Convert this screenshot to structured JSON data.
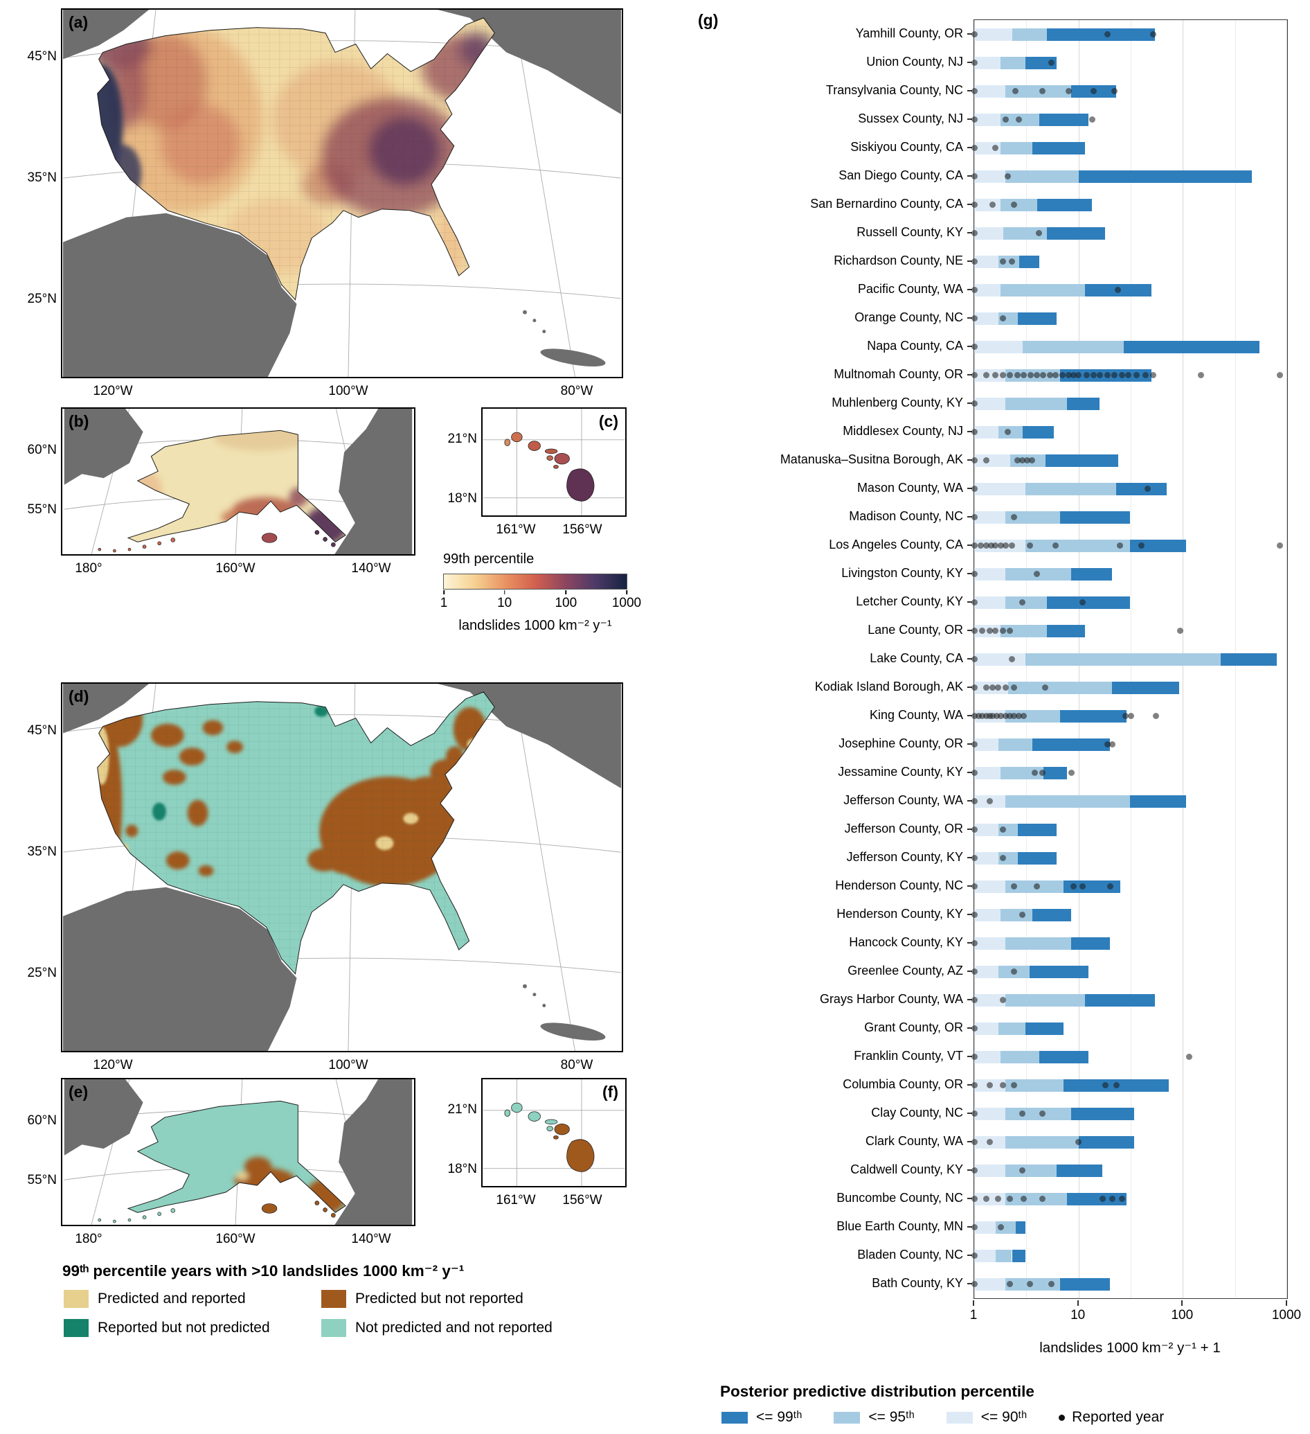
{
  "figure": {
    "panels": {
      "a": {
        "label": "(a)",
        "lat": [
          "45°N",
          "35°N",
          "25°N"
        ],
        "lon": [
          "120°W",
          "100°W",
          "80°W"
        ]
      },
      "b": {
        "label": "(b)",
        "lat": [
          "60°N",
          "55°N"
        ],
        "lon": [
          "180°",
          "160°W",
          "140°W"
        ]
      },
      "c": {
        "label": "(c)",
        "lat": [
          "21°N",
          "18°N"
        ],
        "lon": [
          "161°W",
          "156°W"
        ]
      },
      "d": {
        "label": "(d)",
        "lat": [
          "45°N",
          "35°N",
          "25°N"
        ],
        "lon": [
          "120°W",
          "100°W",
          "80°W"
        ]
      },
      "e": {
        "label": "(e)",
        "lat": [
          "60°N",
          "55°N"
        ],
        "lon": [
          "180°",
          "160°W",
          "140°W"
        ]
      },
      "f": {
        "label": "(f)",
        "lat": [
          "21°N",
          "18°N"
        ],
        "lon": [
          "161°W",
          "156°W"
        ]
      },
      "g": {
        "label": "(g)"
      }
    },
    "colorbar": {
      "title": "99th percentile",
      "ticks": [
        "1",
        "10",
        "100",
        "1000"
      ],
      "unit": "landslides 1000 km⁻² y⁻¹",
      "gradient": [
        "#fcf4d8",
        "#f6d292",
        "#ea9363",
        "#d2604e",
        "#8c4560",
        "#4b3a67",
        "#162240"
      ]
    },
    "map_legend": {
      "title": "99ᵗʰ percentile years with >10 landslides 1000 km⁻² y⁻¹",
      "items": [
        {
          "label": "Predicted and reported",
          "color": "#e7cf8d"
        },
        {
          "label": "Predicted but not reported",
          "color": "#a0591d"
        },
        {
          "label": "Reported but not predicted",
          "color": "#15826a"
        },
        {
          "label": "Not predicted and not reported",
          "color": "#8ed1c0"
        }
      ]
    },
    "chart_legend": {
      "title": "Posterior predictive distribution percentile",
      "items": [
        {
          "label": "<= 99ᵗʰ",
          "color": "#2e7ebc"
        },
        {
          "label": "<= 95ᵗʰ",
          "color": "#a5cbe3"
        },
        {
          "label": "<= 90ᵗʰ",
          "color": "#ddeaf6"
        }
      ],
      "dot_label": "Reported year"
    }
  },
  "chart_data": {
    "type": "bar",
    "orientation": "horizontal",
    "xscale": "log",
    "xlabel": "landslides 1000 km⁻² y⁻¹ + 1",
    "xlim": [
      1,
      1000
    ],
    "x_ticks": [
      1,
      10,
      100,
      1000
    ],
    "minor_gridlines": [
      3.162,
      31.62,
      316.2
    ],
    "colors": {
      "le90": "#ddeaf6",
      "le95": "#a5cbe3",
      "le99": "#2e7ebc",
      "dot": "#1a1a1a"
    },
    "legend_position": "bottom",
    "note": "segments are cumulative posterior predictive percentiles (<=90th, <=95th, <=99th); dots are reported years",
    "counties": [
      {
        "name": "Yamhill County, OR",
        "p90": 2.3,
        "p95": 5,
        "p99": 54,
        "reported": [
          1,
          19,
          52
        ]
      },
      {
        "name": "Union County, NJ",
        "p90": 1.8,
        "p95": 3.1,
        "p99": 6.2,
        "reported": [
          1,
          5.5
        ]
      },
      {
        "name": "Transylvania County, NC",
        "p90": 2,
        "p95": 8.5,
        "p99": 23,
        "reported": [
          1,
          2.5,
          4.5,
          8,
          14,
          22
        ]
      },
      {
        "name": "Sussex County, NJ",
        "p90": 1.8,
        "p95": 4.2,
        "p99": 12.4,
        "reported": [
          1,
          2,
          2.7,
          13.5
        ]
      },
      {
        "name": "Siskiyou County, CA",
        "p90": 1.8,
        "p95": 3.6,
        "p99": 11.5,
        "reported": [
          1,
          1.6
        ]
      },
      {
        "name": "San Diego County, CA",
        "p90": 2,
        "p95": 10,
        "p99": 460,
        "reported": [
          1,
          2.1
        ]
      },
      {
        "name": "San Bernardino County, CA",
        "p90": 1.8,
        "p95": 4,
        "p99": 13.5,
        "reported": [
          1,
          1.5,
          2.4
        ]
      },
      {
        "name": "Russell County, KY",
        "p90": 1.9,
        "p95": 5,
        "p99": 18,
        "reported": [
          1,
          4.2
        ]
      },
      {
        "name": "Richardson County, NE",
        "p90": 1.7,
        "p95": 2.7,
        "p99": 4.2,
        "reported": [
          1,
          1.9,
          2.3
        ]
      },
      {
        "name": "Pacific County, WA",
        "p90": 1.8,
        "p95": 11.5,
        "p99": 50,
        "reported": [
          1,
          24
        ]
      },
      {
        "name": "Orange County, NC",
        "p90": 1.7,
        "p95": 2.6,
        "p99": 6.2,
        "reported": [
          1,
          1.9
        ]
      },
      {
        "name": "Napa County, CA",
        "p90": 2.9,
        "p95": 27,
        "p99": 540,
        "reported": [
          1
        ]
      },
      {
        "name": "Multnomah County, OR",
        "p90": 2,
        "p95": 6.7,
        "p99": 50,
        "reported": [
          1,
          1.3,
          1.6,
          1.9,
          2.2,
          2.6,
          3,
          3.5,
          4,
          4.6,
          5.3,
          6,
          7,
          8,
          9,
          10,
          12,
          14,
          16,
          19,
          22,
          26,
          30,
          36,
          44,
          52,
          150,
          850
        ]
      },
      {
        "name": "Muhlenberg County, KY",
        "p90": 2,
        "p95": 7.8,
        "p99": 16,
        "reported": [
          1
        ]
      },
      {
        "name": "Middlesex County, NJ",
        "p90": 1.7,
        "p95": 2.9,
        "p99": 5.8,
        "reported": [
          1,
          2.1
        ]
      },
      {
        "name": "Matanuska–Susitna Borough, AK",
        "p90": 2.2,
        "p95": 4.8,
        "p99": 24,
        "reported": [
          1,
          1.3,
          2.6,
          2.9,
          3.2,
          3.6
        ]
      },
      {
        "name": "Mason County, WA",
        "p90": 3.1,
        "p95": 23,
        "p99": 70,
        "reported": [
          1,
          46
        ]
      },
      {
        "name": "Madison County, NC",
        "p90": 2,
        "p95": 6.7,
        "p99": 31,
        "reported": [
          1,
          2.4
        ]
      },
      {
        "name": "Los Angeles County, CA",
        "p90": 3.1,
        "p95": 31,
        "p99": 107,
        "reported": [
          1,
          1.15,
          1.3,
          1.45,
          1.6,
          1.8,
          2,
          2.3,
          3.4,
          6,
          25,
          40,
          850
        ]
      },
      {
        "name": "Livingston County, KY",
        "p90": 2,
        "p95": 8.5,
        "p99": 21,
        "reported": [
          1,
          4
        ]
      },
      {
        "name": "Letcher County, KY",
        "p90": 2,
        "p95": 5,
        "p99": 31,
        "reported": [
          1,
          2.9,
          11
        ]
      },
      {
        "name": "Lane County, OR",
        "p90": 1.8,
        "p95": 5,
        "p99": 11.5,
        "reported": [
          1,
          1.2,
          1.4,
          1.6,
          1.9,
          2.2,
          95
        ]
      },
      {
        "name": "Lake County, CA",
        "p90": 3.1,
        "p95": 230,
        "p99": 790,
        "reported": [
          1,
          2.3
        ]
      },
      {
        "name": "Kodiak Island Borough, AK",
        "p90": 2.1,
        "p95": 21,
        "p99": 92,
        "reported": [
          1,
          1.3,
          1.5,
          1.7,
          2,
          2.4,
          4.8
        ]
      },
      {
        "name": "King County, WA",
        "p90": 2,
        "p95": 6.7,
        "p99": 29,
        "reported": [
          1,
          1.1,
          1.2,
          1.3,
          1.4,
          1.5,
          1.65,
          1.8,
          2,
          2.2,
          2.4,
          2.7,
          3,
          28,
          32,
          55
        ]
      },
      {
        "name": "Josephine County, OR",
        "p90": 1.7,
        "p95": 3.6,
        "p99": 20,
        "reported": [
          1,
          19,
          21
        ]
      },
      {
        "name": "Jessamine County, KY",
        "p90": 1.8,
        "p95": 4.6,
        "p99": 7.8,
        "reported": [
          1,
          3.8,
          4.5,
          8.5
        ]
      },
      {
        "name": "Jefferson County, WA",
        "p90": 2,
        "p95": 31,
        "p99": 107,
        "reported": [
          1,
          1.4
        ]
      },
      {
        "name": "Jefferson County, OR",
        "p90": 1.7,
        "p95": 2.6,
        "p99": 6.2,
        "reported": [
          1,
          1.9
        ]
      },
      {
        "name": "Jefferson County, KY",
        "p90": 1.7,
        "p95": 2.6,
        "p99": 6.2,
        "reported": [
          1,
          1.9
        ]
      },
      {
        "name": "Henderson County, NC",
        "p90": 2,
        "p95": 7.2,
        "p99": 25,
        "reported": [
          1,
          2.4,
          4,
          9,
          11,
          20
        ]
      },
      {
        "name": "Henderson County, KY",
        "p90": 1.8,
        "p95": 3.6,
        "p99": 8.5,
        "reported": [
          1,
          2.9
        ]
      },
      {
        "name": "Hancock County, KY",
        "p90": 2,
        "p95": 8.5,
        "p99": 20,
        "reported": [
          1
        ]
      },
      {
        "name": "Greenlee County, AZ",
        "p90": 1.7,
        "p95": 3.4,
        "p99": 12.4,
        "reported": [
          1,
          2.4
        ]
      },
      {
        "name": "Grays Harbor County, WA",
        "p90": 2,
        "p95": 11.5,
        "p99": 54,
        "reported": [
          1,
          1.9
        ]
      },
      {
        "name": "Grant County, OR",
        "p90": 1.7,
        "p95": 3.1,
        "p99": 7.2,
        "reported": [
          1
        ]
      },
      {
        "name": "Franklin County, VT",
        "p90": 1.8,
        "p95": 4.2,
        "p99": 12.4,
        "reported": [
          1,
          115
        ]
      },
      {
        "name": "Columbia County, OR",
        "p90": 2,
        "p95": 7.2,
        "p99": 73,
        "reported": [
          1,
          1.4,
          1.9,
          2.4,
          18,
          23
        ]
      },
      {
        "name": "Clay County, NC",
        "p90": 2,
        "p95": 8.5,
        "p99": 34,
        "reported": [
          1,
          2.9,
          4.5
        ]
      },
      {
        "name": "Clark County, WA",
        "p90": 2,
        "p95": 10,
        "p99": 34,
        "reported": [
          1,
          1.4,
          10
        ]
      },
      {
        "name": "Caldwell County, KY",
        "p90": 2,
        "p95": 6.2,
        "p99": 17,
        "reported": [
          1,
          2.9
        ]
      },
      {
        "name": "Buncombe County, NC",
        "p90": 2,
        "p95": 7.8,
        "p99": 29,
        "reported": [
          1,
          1.3,
          1.7,
          2.2,
          3,
          4.5,
          17,
          21,
          26
        ]
      },
      {
        "name": "Blue Earth County, MN",
        "p90": 1.6,
        "p95": 2.5,
        "p99": 3.1,
        "reported": [
          1,
          1.8
        ]
      },
      {
        "name": "Bladen County, NC",
        "p90": 1.6,
        "p95": 2.3,
        "p99": 3.1,
        "reported": [
          1
        ]
      },
      {
        "name": "Bath County, KY",
        "p90": 2,
        "p95": 6.7,
        "p99": 20,
        "reported": [
          1,
          2.2,
          3.4,
          5.5
        ]
      }
    ]
  }
}
